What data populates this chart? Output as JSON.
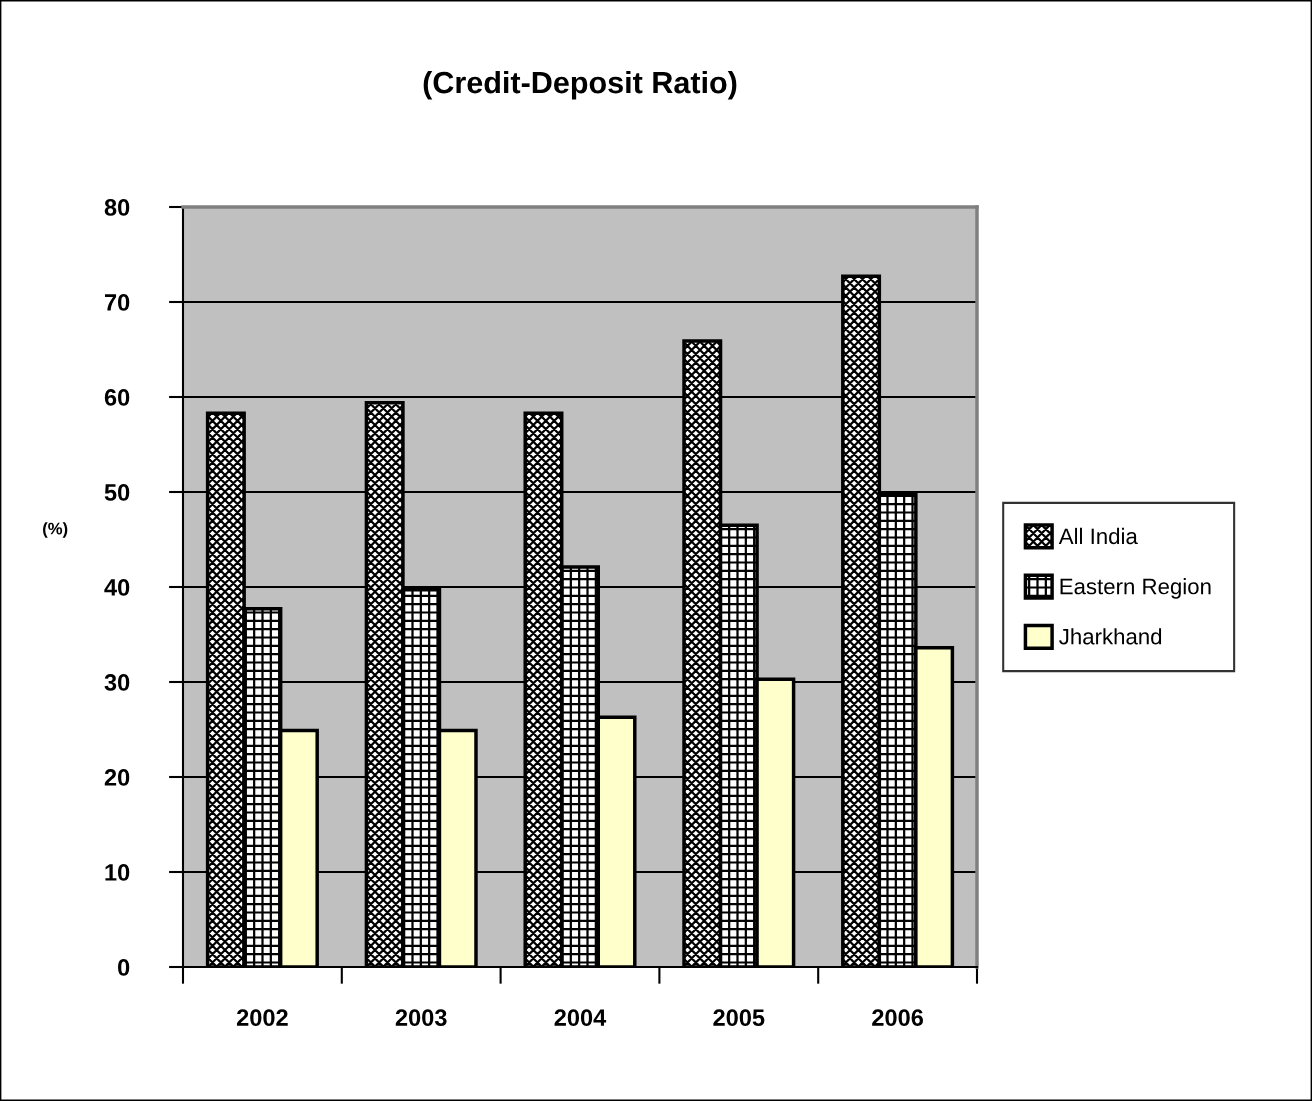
{
  "chart_data": {
    "type": "bar",
    "title": "(Credit-Deposit Ratio)",
    "ylabel": "(%)",
    "categories": [
      "2002",
      "2003",
      "2004",
      "2005",
      "2006"
    ],
    "series": [
      {
        "name": "All India",
        "color": "#000000",
        "values": [
          58.3,
          59.4,
          58.3,
          65.9,
          72.7
        ]
      },
      {
        "name": "Eastern Region",
        "color": "#000000",
        "values": [
          37.7,
          39.7,
          42.1,
          46.5,
          49.8
        ]
      },
      {
        "name": "Jharkhand",
        "color": "#ffffcc",
        "values": [
          24.9,
          24.9,
          26.3,
          30.3,
          33.6
        ]
      }
    ],
    "ylim": [
      0,
      80
    ],
    "yticks": [
      0,
      10,
      20,
      30,
      40,
      50,
      60,
      70,
      80
    ],
    "grid": "y",
    "legend": "right"
  }
}
